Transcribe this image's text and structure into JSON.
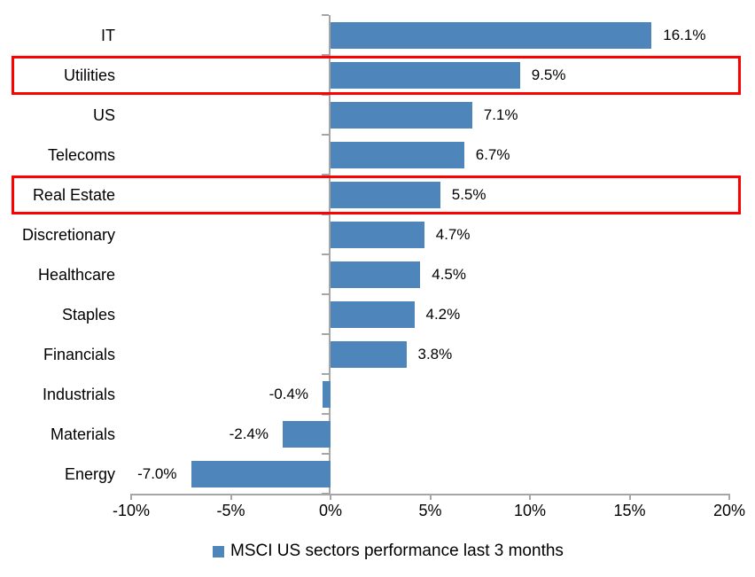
{
  "chart_data": {
    "type": "bar",
    "orientation": "horizontal",
    "title": "",
    "categories": [
      "IT",
      "Utilities",
      "US",
      "Telecoms",
      "Real Estate",
      "Discretionary",
      "Healthcare",
      "Staples",
      "Financials",
      "Industrials",
      "Materials",
      "Energy"
    ],
    "values": [
      16.1,
      9.5,
      7.1,
      6.7,
      5.5,
      4.7,
      4.5,
      4.2,
      3.8,
      -0.4,
      -2.4,
      -7.0
    ],
    "value_labels": [
      "16.1%",
      "9.5%",
      "7.1%",
      "6.7%",
      "5.5%",
      "4.7%",
      "4.5%",
      "4.2%",
      "3.8%",
      "-0.4%",
      "-2.4%",
      "-7.0%"
    ],
    "highlighted_categories": [
      "Utilities",
      "Real Estate"
    ],
    "x_axis": {
      "tick_labels": [
        "-10%",
        "-5%",
        "0%",
        "5%",
        "10%",
        "15%",
        "20%"
      ],
      "tick_values": [
        -10,
        -5,
        0,
        5,
        10,
        15,
        20
      ],
      "range": [
        -10,
        20
      ]
    },
    "legend": {
      "label": "MSCI US sectors performance last 3 months",
      "position": "bottom"
    },
    "colors": {
      "bar": "#4e86bc",
      "highlight_box": "#fe0000",
      "axis_line": "#a6a6a6",
      "text": "#000000",
      "background": "#ffffff"
    },
    "grid": false
  }
}
